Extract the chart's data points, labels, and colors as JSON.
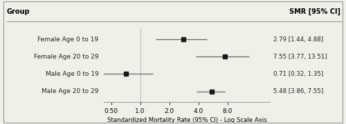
{
  "groups": [
    "Female Age 0 to 19",
    "Female Age 20 to 29",
    "Male Age 0 to 19",
    "Male Age 20 to 29"
  ],
  "smr": [
    2.79,
    7.55,
    0.71,
    5.48
  ],
  "ci_low": [
    1.44,
    3.77,
    0.32,
    3.86
  ],
  "ci_high": [
    4.88,
    13.51,
    1.35,
    7.55
  ],
  "smr_labels": [
    "2.79 [1.44, 4.88]",
    "7.55 [3.77, 13.51]",
    "0.71 [0.32, 1.35]",
    "5.48 [3.86, 7.55]"
  ],
  "col_header_left": "Group",
  "col_header_right": "SMR [95% CI]",
  "xlabel": "Standardized Mortality Rate (95% CI) - Log Scale Axis",
  "xlim_log": [
    0.42,
    22
  ],
  "x_ticks": [
    0.5,
    1.0,
    2.0,
    4.0,
    8.0
  ],
  "x_tick_labels": [
    "0.50",
    "1.0",
    "2.0",
    "4.0",
    "8.0"
  ],
  "vline_x": 1.0,
  "marker_color": "#1a1a1a",
  "line_color": "#666666",
  "background_color": "#f0efe8",
  "border_color": "#999999",
  "text_color": "#222222"
}
